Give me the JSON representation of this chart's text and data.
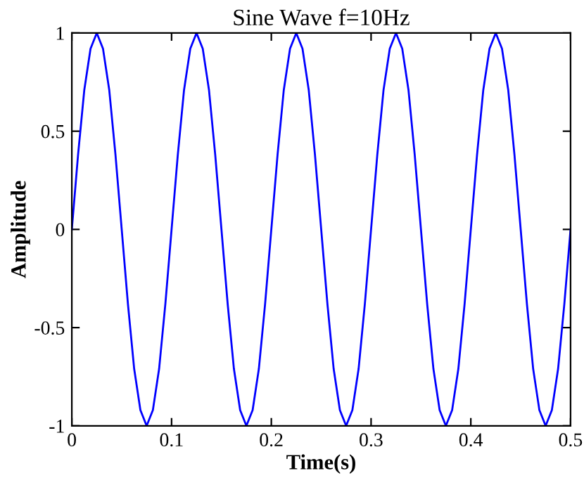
{
  "chart_data": {
    "type": "line",
    "title": "Sine Wave f=10Hz",
    "xlabel": "Time(s)",
    "ylabel": "Amplitude",
    "x": [
      0,
      0.00625,
      0.0125,
      0.01875,
      0.025,
      0.03125,
      0.0375,
      0.04375,
      0.05,
      0.05625,
      0.0625,
      0.06875,
      0.075,
      0.08125,
      0.0875,
      0.09375,
      0.1,
      0.10625,
      0.1125,
      0.11875,
      0.125,
      0.13125,
      0.1375,
      0.14375,
      0.15,
      0.15625,
      0.1625,
      0.16875,
      0.175,
      0.18125,
      0.1875,
      0.19375,
      0.2,
      0.20625,
      0.2125,
      0.21875,
      0.225,
      0.23125,
      0.2375,
      0.24375,
      0.25,
      0.25625,
      0.2625,
      0.26875,
      0.275,
      0.28125,
      0.2875,
      0.29375,
      0.3,
      0.30625,
      0.3125,
      0.31875,
      0.325,
      0.33125,
      0.3375,
      0.34375,
      0.35,
      0.35625,
      0.3625,
      0.36875,
      0.375,
      0.38125,
      0.3875,
      0.39375,
      0.4,
      0.40625,
      0.4125,
      0.41875,
      0.425,
      0.43125,
      0.4375,
      0.44375,
      0.45,
      0.45625,
      0.4625,
      0.46875,
      0.475,
      0.48125,
      0.4875,
      0.49375,
      0.5
    ],
    "series": [
      {
        "color": "#0000ff",
        "values": [
          0,
          0.38,
          0.71,
          0.92,
          1,
          0.92,
          0.71,
          0.38,
          0,
          -0.38,
          -0.71,
          -0.92,
          -1,
          -0.92,
          -0.71,
          -0.38,
          0,
          0.38,
          0.71,
          0.92,
          1,
          0.92,
          0.71,
          0.38,
          0,
          -0.38,
          -0.71,
          -0.92,
          -1,
          -0.92,
          -0.71,
          -0.38,
          0,
          0.38,
          0.71,
          0.92,
          1,
          0.92,
          0.71,
          0.38,
          0,
          -0.38,
          -0.71,
          -0.92,
          -1,
          -0.92,
          -0.71,
          -0.38,
          0,
          0.38,
          0.71,
          0.92,
          1,
          0.92,
          0.71,
          0.38,
          0,
          -0.38,
          -0.71,
          -0.92,
          -1,
          -0.92,
          -0.71,
          -0.38,
          0,
          0.38,
          0.71,
          0.92,
          1,
          0.92,
          0.71,
          0.38,
          0,
          -0.38,
          -0.71,
          -0.92,
          -1,
          -0.92,
          -0.71,
          -0.38,
          0
        ]
      }
    ],
    "xlim": [
      0,
      0.5
    ],
    "ylim": [
      -1,
      1
    ],
    "xticks": [
      0,
      0.1,
      0.2,
      0.3,
      0.4,
      0.5
    ],
    "yticks": [
      -1,
      -0.5,
      0,
      0.5,
      1
    ],
    "grid": false,
    "legend": false,
    "marker": "none",
    "line_style": "solid"
  }
}
